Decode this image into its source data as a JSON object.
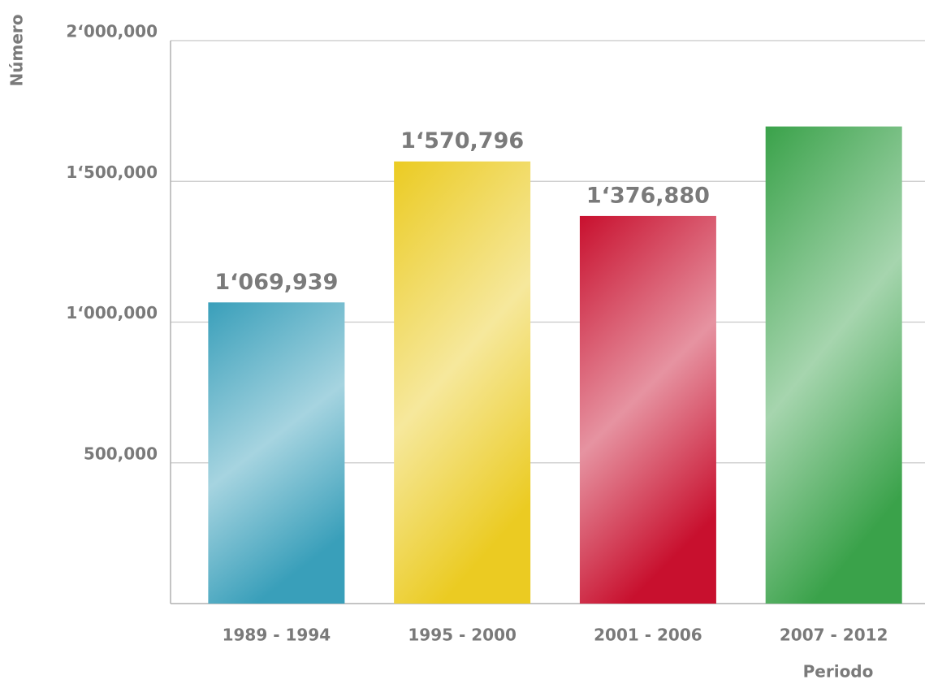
{
  "chart_data": {
    "type": "bar",
    "y_label": "Número",
    "x_label": "Periodo",
    "categories": [
      "1989 - 1994",
      "1995 - 2000",
      "2001 - 2006",
      "2007 - 2012"
    ],
    "values": [
      1069939,
      1570796,
      1376880,
      1695000
    ],
    "value_labels": [
      "1‘069,939",
      "1‘570,796",
      "1‘376,880",
      null
    ],
    "colors": [
      "#399fba",
      "#ebcb22",
      "#c8102e",
      "#3aa24a"
    ],
    "ylim": [
      0,
      2000000
    ],
    "yticks": [
      {
        "value": 500000,
        "label": "500,000"
      },
      {
        "value": 1000000,
        "label": "1‘000,000"
      },
      {
        "value": 1500000,
        "label": "1‘500,000"
      },
      {
        "value": 2000000,
        "label": "2‘000,000"
      }
    ],
    "grid": true
  }
}
